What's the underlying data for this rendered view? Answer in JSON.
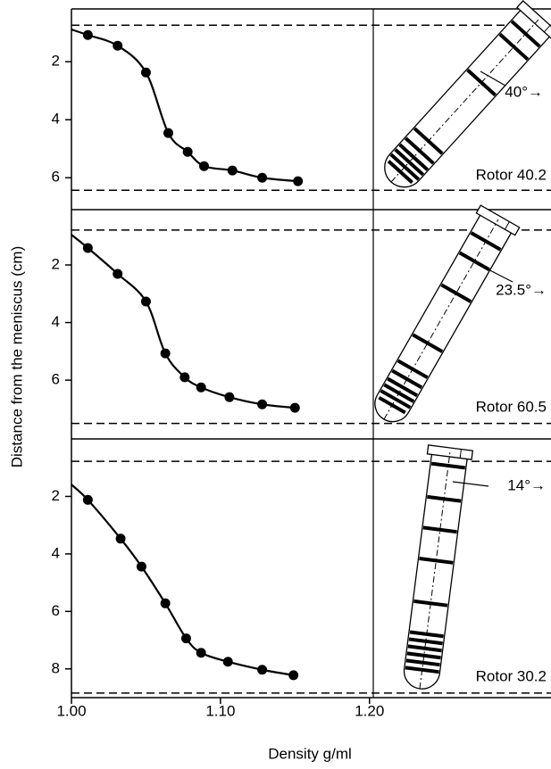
{
  "ylabel": "Distance from the meniscus (cm)",
  "xlabel": "Density g/ml",
  "chart_data": [
    {
      "type": "line",
      "xlim": [
        1.0,
        1.32
      ],
      "ylim": [
        0.18,
        7.1
      ],
      "yticks": [
        2,
        4,
        6
      ],
      "hlines": [
        0.74,
        6.43
      ],
      "rotor": "Rotor 40.2",
      "angle": "40°→",
      "series": [
        {
          "color": "#000000",
          "smooth": true,
          "x": [
            1.0,
            1.011,
            1.031,
            1.05,
            1.065,
            1.078,
            1.089,
            1.108,
            1.128,
            1.152
          ],
          "values": [
            0.89,
            1.08,
            1.45,
            2.37,
            4.46,
            5.11,
            5.6,
            5.75,
            6.0,
            6.12
          ]
        },
        {
          "color": "#000000",
          "markers": true,
          "x": [
            1.011,
            1.031,
            1.05,
            1.065,
            1.078,
            1.089,
            1.108,
            1.128,
            1.152
          ],
          "values": [
            1.08,
            1.45,
            2.37,
            4.46,
            5.11,
            5.6,
            5.75,
            6.0,
            6.12
          ]
        }
      ]
    },
    {
      "type": "line",
      "xlim": [
        1.0,
        1.32
      ],
      "ylim": [
        0.08,
        8.04
      ],
      "yticks": [
        2,
        4,
        6
      ],
      "hlines": [
        0.79,
        7.5
      ],
      "rotor": "Rotor 60.5",
      "angle": "23.5°→",
      "series": [
        {
          "color": "#000000",
          "smooth": true,
          "x": [
            1.0,
            1.011,
            1.031,
            1.05,
            1.063,
            1.076,
            1.087,
            1.106,
            1.128,
            1.15
          ],
          "values": [
            0.95,
            1.41,
            2.31,
            3.27,
            5.07,
            5.9,
            6.25,
            6.59,
            6.84,
            6.96
          ]
        },
        {
          "color": "#000000",
          "markers": true,
          "x": [
            1.011,
            1.031,
            1.05,
            1.063,
            1.076,
            1.087,
            1.106,
            1.128,
            1.15
          ],
          "values": [
            1.41,
            2.31,
            3.27,
            5.07,
            5.9,
            6.25,
            6.59,
            6.84,
            6.96
          ]
        }
      ]
    },
    {
      "type": "line",
      "xlim": [
        1.0,
        1.32
      ],
      "ylim": [
        0,
        9.0
      ],
      "yticks": [
        2,
        4,
        6,
        8
      ],
      "hlines": [
        0.78,
        8.84
      ],
      "xticks": [
        {
          "value": 1.0,
          "label": "1.00"
        },
        {
          "value": 1.1,
          "label": "1.10"
        },
        {
          "value": 1.2,
          "label": "1.20"
        }
      ],
      "rotor": "Rotor 30.2",
      "angle": "14°→",
      "series": [
        {
          "color": "#000000",
          "smooth": true,
          "x": [
            1.0,
            1.011,
            1.033,
            1.047,
            1.063,
            1.077,
            1.087,
            1.105,
            1.128,
            1.149
          ],
          "values": [
            1.59,
            2.12,
            3.47,
            4.44,
            5.72,
            6.94,
            7.44,
            7.75,
            8.03,
            8.22
          ]
        },
        {
          "color": "#000000",
          "markers": true,
          "x": [
            1.011,
            1.033,
            1.047,
            1.063,
            1.077,
            1.087,
            1.105,
            1.128,
            1.149
          ],
          "values": [
            2.12,
            3.47,
            4.44,
            5.72,
            6.94,
            7.44,
            7.75,
            8.03,
            8.22
          ]
        }
      ]
    }
  ]
}
